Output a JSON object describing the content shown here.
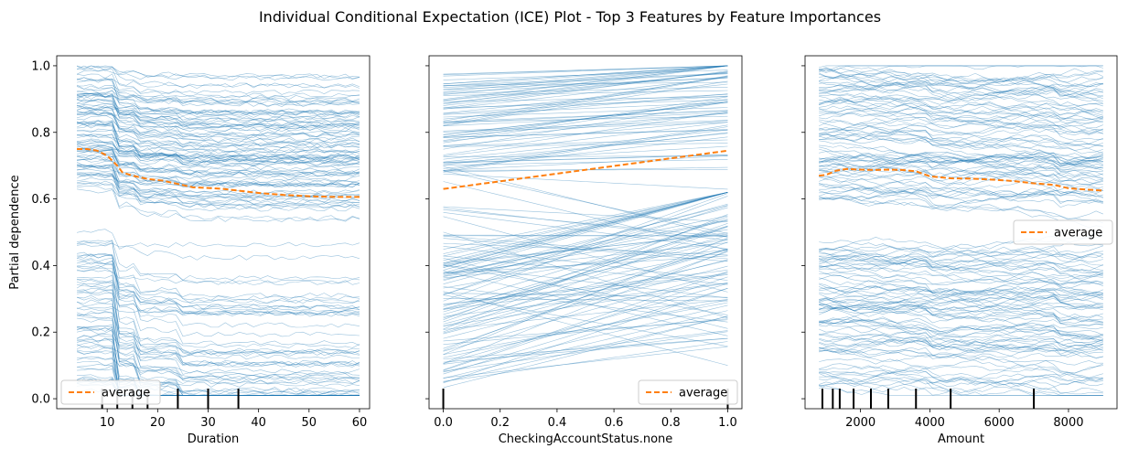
{
  "figure": {
    "title": "Individual Conditional Expectation (ICE) Plot - Top 3 Features by Feature Importances"
  },
  "colors": {
    "ice_line": "#1f77b4",
    "average_line": "#ff7f0e",
    "axes": "#000000",
    "legend_border": "#cccccc"
  },
  "chart_data": [
    {
      "type": "line",
      "xlabel": "Duration",
      "ylabel": "Partial dependence",
      "xlim": [
        0,
        62
      ],
      "ylim": [
        -0.03,
        1.03
      ],
      "xticks": [
        10,
        20,
        30,
        40,
        50,
        60
      ],
      "xtick_labels": [
        "10",
        "20",
        "30",
        "40",
        "50",
        "60"
      ],
      "yticks": [
        0.0,
        0.2,
        0.4,
        0.6,
        0.8,
        1.0
      ],
      "ytick_labels": [
        "0.0",
        "0.2",
        "0.4",
        "0.6",
        "0.8",
        "1.0"
      ],
      "legend": {
        "label": "average",
        "placement": "lower-left"
      },
      "series": [
        {
          "name": "average",
          "x": [
            4,
            6,
            8,
            10,
            12,
            13,
            15,
            18,
            21,
            24,
            27,
            30,
            33,
            36,
            40,
            45,
            50,
            55,
            60
          ],
          "values": [
            0.75,
            0.75,
            0.745,
            0.73,
            0.7,
            0.68,
            0.67,
            0.66,
            0.655,
            0.645,
            0.635,
            0.633,
            0.63,
            0.625,
            0.618,
            0.612,
            0.608,
            0.606,
            0.606
          ]
        }
      ],
      "rug": [
        9,
        12,
        15,
        18,
        24,
        30,
        36
      ]
    },
    {
      "type": "line",
      "xlabel": "CheckingAccountStatus.none",
      "ylabel": "",
      "xlim": [
        -0.05,
        1.05
      ],
      "ylim": [
        -0.03,
        1.03
      ],
      "xticks": [
        0.0,
        0.2,
        0.4,
        0.6,
        0.8,
        1.0
      ],
      "xtick_labels": [
        "0.0",
        "0.2",
        "0.4",
        "0.6",
        "0.8",
        "1.0"
      ],
      "yticks": [
        0.0,
        0.2,
        0.4,
        0.6,
        0.8,
        1.0
      ],
      "ytick_labels": [
        "",
        "",
        "",
        "",
        "",
        ""
      ],
      "legend": {
        "label": "average",
        "placement": "lower-right"
      },
      "series": [
        {
          "name": "average",
          "x": [
            0.0,
            0.2,
            0.4,
            0.6,
            0.8,
            1.0
          ],
          "values": [
            0.63,
            0.653,
            0.676,
            0.699,
            0.722,
            0.745
          ]
        }
      ],
      "rug": [
        0.0,
        1.0
      ]
    },
    {
      "type": "line",
      "xlabel": "Amount",
      "ylabel": "",
      "xlim": [
        400,
        9400
      ],
      "ylim": [
        -0.03,
        1.03
      ],
      "xticks": [
        2000,
        4000,
        6000,
        8000
      ],
      "xtick_labels": [
        "2000",
        "4000",
        "6000",
        "8000"
      ],
      "yticks": [
        0.0,
        0.2,
        0.4,
        0.6,
        0.8,
        1.0
      ],
      "ytick_labels": [
        "",
        "",
        "",
        "",
        "",
        ""
      ],
      "legend": {
        "label": "average",
        "placement": "center-right"
      },
      "series": [
        {
          "name": "average",
          "x": [
            800,
            1000,
            1300,
            1600,
            2000,
            2400,
            2800,
            3200,
            3600,
            4000,
            4600,
            5200,
            5800,
            6400,
            7000,
            7600,
            8000,
            8400,
            9000
          ],
          "values": [
            0.67,
            0.672,
            0.685,
            0.69,
            0.688,
            0.687,
            0.688,
            0.687,
            0.683,
            0.668,
            0.662,
            0.661,
            0.658,
            0.654,
            0.647,
            0.642,
            0.632,
            0.629,
            0.625
          ]
        }
      ],
      "rug": [
        900,
        1200,
        1400,
        1800,
        2300,
        2800,
        3600,
        4600,
        7000
      ]
    }
  ]
}
